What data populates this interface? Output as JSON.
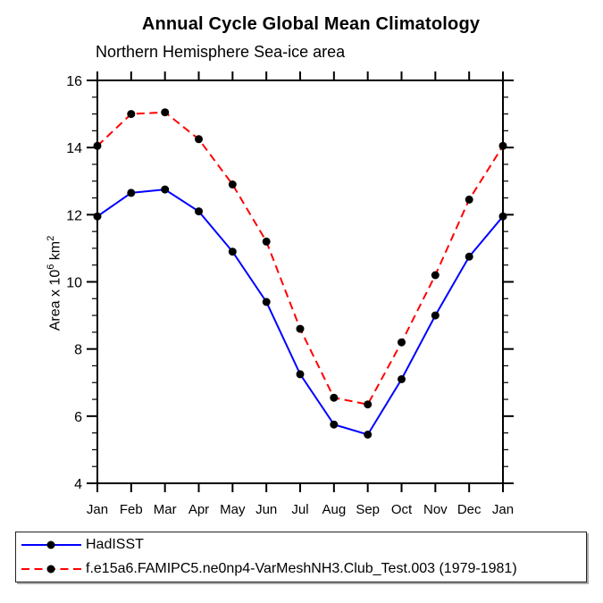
{
  "title": "Annual Cycle Global Mean Climatology",
  "subtitle": "Northern Hemisphere Sea-ice area",
  "y_axis": {
    "label_prefix": "Area x 10",
    "label_sup1": "6",
    "label_mid": " km",
    "label_sup2": "2"
  },
  "legend": [
    {
      "label": "HadISST",
      "color": "#0000ff",
      "style": "solid"
    },
    {
      "label": "f.e15a6.FAMIPC5.ne0np4-VarMeshNH3.Club_Test.003 (1979-1981)",
      "color": "#ff0000",
      "style": "dashed"
    }
  ],
  "chart_data": {
    "type": "line",
    "title": "Annual Cycle Global Mean Climatology",
    "subtitle": "Northern Hemisphere Sea-ice area",
    "ylabel": "Area x 10^6 km^2",
    "xlabel": "",
    "categories": [
      "Jan",
      "Feb",
      "Mar",
      "Apr",
      "May",
      "Jun",
      "Jul",
      "Aug",
      "Sep",
      "Oct",
      "Nov",
      "Dec",
      "Jan"
    ],
    "series": [
      {
        "name": "HadISST",
        "color": "#0000ff",
        "line_style": "solid",
        "marker": "circle",
        "marker_color": "#000000",
        "values": [
          11.95,
          12.65,
          12.75,
          12.1,
          10.9,
          9.4,
          7.25,
          5.75,
          5.45,
          7.1,
          9.0,
          10.75,
          11.95
        ]
      },
      {
        "name": "f.e15a6.FAMIPC5.ne0np4-VarMeshNH3.Club_Test.003 (1979-1981)",
        "color": "#ff0000",
        "line_style": "dashed",
        "marker": "circle",
        "marker_color": "#000000",
        "values": [
          14.05,
          15.0,
          15.05,
          14.25,
          12.9,
          11.2,
          8.6,
          6.55,
          6.35,
          8.2,
          10.2,
          12.45,
          14.05
        ]
      }
    ],
    "ylim": [
      4,
      16
    ],
    "ytick_major": [
      4,
      6,
      8,
      10,
      12,
      14,
      16
    ],
    "ytick_minor_step": 0.5,
    "grid": false,
    "legend_position": "bottom"
  }
}
